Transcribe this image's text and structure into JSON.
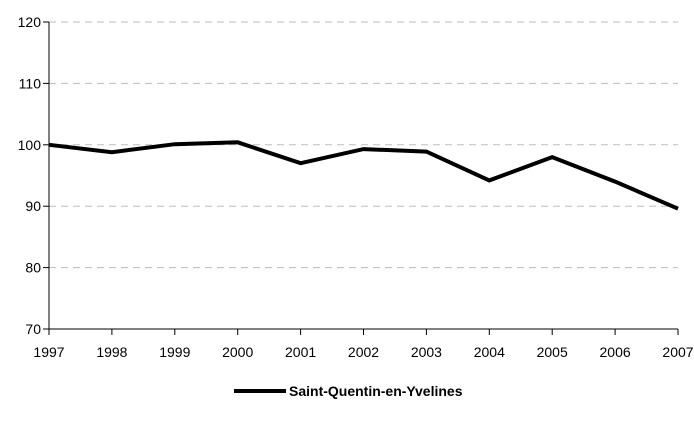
{
  "chart_data": {
    "type": "line",
    "x": [
      "1997",
      "1998",
      "1999",
      "2000",
      "2001",
      "2002",
      "2003",
      "2004",
      "2005",
      "2006",
      "2007"
    ],
    "series": [
      {
        "name": "Saint-Quentin-en-Yvelines",
        "values": [
          100,
          98.8,
          100.1,
          100.4,
          97,
          99.3,
          98.9,
          94.2,
          98,
          94,
          89.6
        ],
        "color": "#000000"
      }
    ],
    "yticks": [
      70,
      80,
      90,
      100,
      110,
      120
    ],
    "ylim": [
      70,
      120
    ],
    "grid": true,
    "legend_position": "bottom-center",
    "title": "",
    "xlabel": "",
    "ylabel": ""
  }
}
